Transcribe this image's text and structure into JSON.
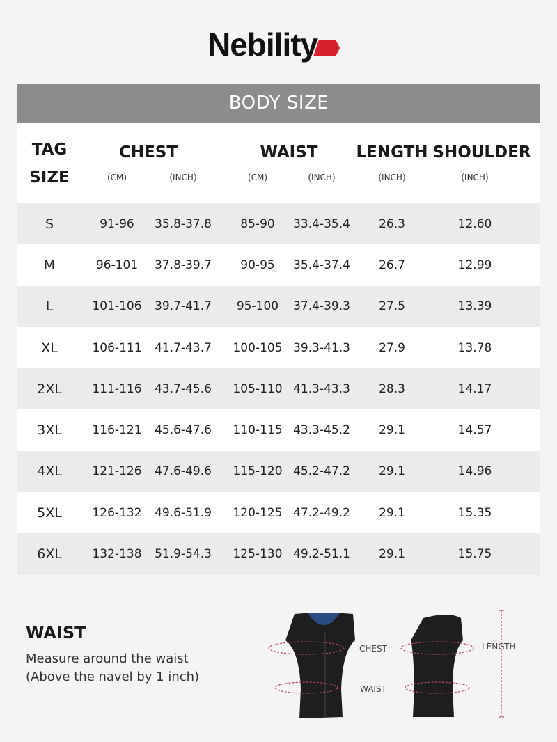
{
  "brand": {
    "name": "Nebility",
    "accent": "#d81f2c"
  },
  "table": {
    "title": "BODY SIZE",
    "headers": {
      "tag": "TAG",
      "size": "SIZE",
      "chest": "CHEST",
      "waist": "WAIST",
      "length": "LENGTH",
      "shoulder": "SHOULDER"
    },
    "units": {
      "chest_cm": "(CM)",
      "chest_in": "(INCH)",
      "waist_cm": "(CM)",
      "waist_in": "(INCH)",
      "length": "(INCH)",
      "shoulder": "(INCH)"
    },
    "rows": [
      [
        "S",
        "91-96",
        "35.8-37.8",
        "85-90",
        "33.4-35.4",
        "26.3",
        "12.60"
      ],
      [
        "M",
        "96-101",
        "37.8-39.7",
        "90-95",
        "35.4-37.4",
        "26.7",
        "12.99"
      ],
      [
        "L",
        "101-106",
        "39.7-41.7",
        "95-100",
        "37.4-39.3",
        "27.5",
        "13.39"
      ],
      [
        "XL",
        "106-111",
        "41.7-43.7",
        "100-105",
        "39.3-41.3",
        "27.9",
        "13.78"
      ],
      [
        "2XL",
        "111-116",
        "43.7-45.6",
        "105-110",
        "41.3-43.3",
        "28.3",
        "14.17"
      ],
      [
        "3XL",
        "116-121",
        "45.6-47.6",
        "110-115",
        "43.3-45.2",
        "29.1",
        "14.57"
      ],
      [
        "4XL",
        "121-126",
        "47.6-49.6",
        "115-120",
        "45.2-47.2",
        "29.1",
        "14.96"
      ],
      [
        "5XL",
        "126-132",
        "49.6-51.9",
        "120-125",
        "47.2-49.2",
        "29.1",
        "15.35"
      ],
      [
        "6XL",
        "132-138",
        "51.9-54.3",
        "125-130",
        "49.2-51.1",
        "29.1",
        "15.75"
      ]
    ]
  },
  "guide": {
    "title": "WAIST",
    "line1": "Measure around the waist",
    "line2": "(Above the navel by 1 inch)",
    "labels": {
      "chest": "CHEST",
      "waist": "WAIST",
      "length": "LENGTH"
    }
  }
}
